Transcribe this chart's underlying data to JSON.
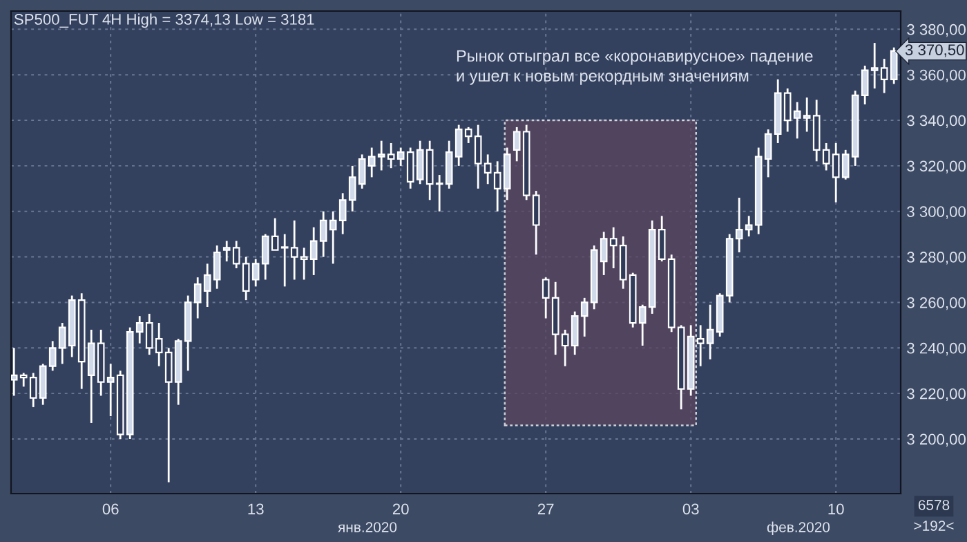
{
  "chart_data": {
    "type": "candlestick",
    "title": "SP500_FUT 4H High = 3374,13 Low = 3181",
    "categories": [
      null,
      null,
      null,
      null,
      null,
      null,
      null,
      null,
      null,
      null,
      "06",
      null,
      null,
      null,
      null,
      null,
      null,
      null,
      null,
      null,
      null,
      null,
      null,
      null,
      null,
      "13",
      null,
      null,
      null,
      null,
      null,
      null,
      null,
      null,
      null,
      null,
      null,
      null,
      null,
      null,
      "20",
      null,
      null,
      null,
      null,
      null,
      null,
      null,
      null,
      null,
      null,
      null,
      null,
      null,
      null,
      "27",
      null,
      null,
      null,
      null,
      null,
      null,
      null,
      null,
      null,
      null,
      null,
      null,
      null,
      null,
      "03",
      null,
      null,
      null,
      null,
      null,
      null,
      null,
      null,
      null,
      null,
      null,
      null,
      null,
      null,
      "10",
      null,
      null,
      null,
      null,
      null,
      null
    ],
    "ohlc": [
      [
        3226,
        3240,
        3219,
        3228
      ],
      [
        3228,
        3229,
        3223,
        3227
      ],
      [
        3227,
        3229,
        3214,
        3218
      ],
      [
        3218,
        3233,
        3215,
        3232
      ],
      [
        3232,
        3243,
        3230,
        3240
      ],
      [
        3240,
        3251,
        3233,
        3249
      ],
      [
        3241,
        3263,
        3236,
        3261
      ],
      [
        3261,
        3264,
        3222,
        3234
      ],
      [
        3228,
        3248,
        3207,
        3242
      ],
      [
        3242,
        3248,
        3219,
        3225
      ],
      [
        3225,
        3233,
        3210,
        3227
      ],
      [
        3228,
        3230,
        3200,
        3202
      ],
      [
        3202,
        3249,
        3200,
        3247
      ],
      [
        3247,
        3254,
        3242,
        3251
      ],
      [
        3251,
        3255,
        3237,
        3240
      ],
      [
        3244,
        3251,
        3232,
        3238
      ],
      [
        3238,
        3240,
        3181,
        3225
      ],
      [
        3225,
        3244,
        3215,
        3243
      ],
      [
        3243,
        3263,
        3230,
        3260
      ],
      [
        3260,
        3271,
        3253,
        3268
      ],
      [
        3265,
        3277,
        3258,
        3272
      ],
      [
        3270,
        3285,
        3266,
        3282
      ],
      [
        3283,
        3287,
        3278,
        3284
      ],
      [
        3284,
        3287,
        3275,
        3277
      ],
      [
        3277,
        3280,
        3261,
        3265
      ],
      [
        3270,
        3279,
        3267,
        3277
      ],
      [
        3277,
        3290,
        3270,
        3289
      ],
      [
        3289,
        3297,
        3283,
        3283
      ],
      [
        3284,
        3290,
        3267,
        3284
      ],
      [
        3284,
        3296,
        3270,
        3280
      ],
      [
        3280,
        3284,
        3270,
        3279
      ],
      [
        3279,
        3293,
        3272,
        3287
      ],
      [
        3287,
        3300,
        3280,
        3296
      ],
      [
        3292,
        3300,
        3277,
        3296
      ],
      [
        3296,
        3308,
        3290,
        3305
      ],
      [
        3305,
        3320,
        3300,
        3315
      ],
      [
        3312,
        3325,
        3310,
        3323
      ],
      [
        3320,
        3328,
        3315,
        3324
      ],
      [
        3324,
        3331,
        3318,
        3325
      ],
      [
        3325,
        3330,
        3319,
        3323
      ],
      [
        3323,
        3328,
        3320,
        3326
      ],
      [
        3326,
        3328,
        3310,
        3313
      ],
      [
        3314,
        3331,
        3312,
        3327
      ],
      [
        3327,
        3331,
        3305,
        3312
      ],
      [
        3312,
        3316,
        3300,
        3312
      ],
      [
        3312,
        3331,
        3310,
        3326
      ],
      [
        3324,
        3338,
        3320,
        3336
      ],
      [
        3336,
        3337,
        3330,
        3333
      ],
      [
        3333,
        3338,
        3310,
        3321
      ],
      [
        3321,
        3325,
        3312,
        3317
      ],
      [
        3317,
        3322,
        3300,
        3310
      ],
      [
        3310,
        3328,
        3305,
        3325
      ],
      [
        3327,
        3337,
        3322,
        3335
      ],
      [
        3335,
        3338,
        3305,
        3307
      ],
      [
        3307,
        3309,
        3281,
        3294
      ],
      [
        3270,
        3271,
        3253,
        3262
      ],
      [
        3262,
        3269,
        3237,
        3246
      ],
      [
        3246,
        3248,
        3232,
        3241
      ],
      [
        3241,
        3256,
        3237,
        3254
      ],
      [
        3254,
        3262,
        3245,
        3260
      ],
      [
        3260,
        3285,
        3257,
        3283
      ],
      [
        3278,
        3291,
        3272,
        3288
      ],
      [
        3288,
        3293,
        3275,
        3285
      ],
      [
        3285,
        3289,
        3266,
        3270
      ],
      [
        3272,
        3273,
        3249,
        3251
      ],
      [
        3251,
        3259,
        3241,
        3258
      ],
      [
        3258,
        3296,
        3255,
        3292
      ],
      [
        3292,
        3298,
        3278,
        3279
      ],
      [
        3279,
        3281,
        3247,
        3249
      ],
      [
        3249,
        3250,
        3213,
        3222
      ],
      [
        3222,
        3250,
        3219,
        3245
      ],
      [
        3244,
        3250,
        3232,
        3242
      ],
      [
        3242,
        3259,
        3235,
        3248
      ],
      [
        3247,
        3264,
        3245,
        3263
      ],
      [
        3263,
        3290,
        3260,
        3288
      ],
      [
        3288,
        3306,
        3282,
        3292
      ],
      [
        3292,
        3298,
        3289,
        3294
      ],
      [
        3294,
        3328,
        3290,
        3324
      ],
      [
        3323,
        3336,
        3315,
        3334
      ],
      [
        3334,
        3358,
        3330,
        3352
      ],
      [
        3352,
        3354,
        3335,
        3340
      ],
      [
        3341,
        3348,
        3332,
        3344
      ],
      [
        3341,
        3350,
        3335,
        3342
      ],
      [
        3342,
        3349,
        3322,
        3327
      ],
      [
        3327,
        3330,
        3318,
        3321
      ],
      [
        3325,
        3330,
        3304,
        3315
      ],
      [
        3315,
        3327,
        3314,
        3325
      ],
      [
        3324,
        3353,
        3320,
        3351
      ],
      [
        3351,
        3364,
        3347,
        3362
      ],
      [
        3362,
        3374,
        3354,
        3363
      ],
      [
        3363,
        3367,
        3352,
        3358
      ],
      [
        3358,
        3372,
        3356,
        3370.5
      ]
    ],
    "ylim": [
      3176,
      3388
    ],
    "yticks": [
      {
        "value": 3200,
        "label": "3 200,00"
      },
      {
        "value": 3220,
        "label": "3 220,00"
      },
      {
        "value": 3240,
        "label": "3 240,00"
      },
      {
        "value": 3260,
        "label": "3 260,00"
      },
      {
        "value": 3280,
        "label": "3 280,00"
      },
      {
        "value": 3300,
        "label": "3 300,00"
      },
      {
        "value": 3320,
        "label": "3 320,00"
      },
      {
        "value": 3340,
        "label": "3 340,00"
      },
      {
        "value": 3360,
        "label": "3 360,00"
      },
      {
        "value": 3380,
        "label": "3 380,00"
      }
    ],
    "grid": true,
    "bands": [
      {
        "axis": "y",
        "from": 3206,
        "to": 3340,
        "color": "#5a4560"
      }
    ],
    "annotations": [
      "Рынок отыграл все «коронавирусное» падение\nи ушел к новым рекордным значениям",
      "3 370,50",
      "янв.2020",
      "фев.2020",
      "6578",
      ">192<"
    ]
  }
}
